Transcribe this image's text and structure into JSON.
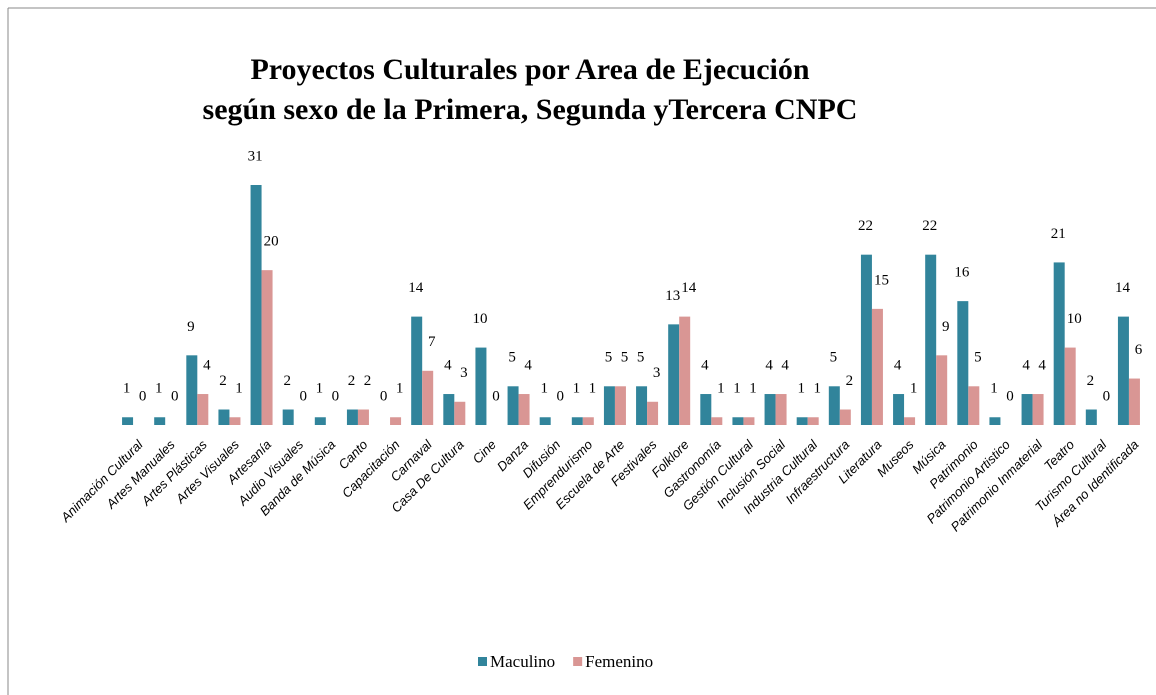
{
  "chart_data": {
    "type": "bar",
    "title": "Proyectos Culturales por Area de Ejecución",
    "subtitle": "según sexo de la Primera, Segunda yTercera CNPC",
    "categories": [
      "Animación Cultural",
      "Artes Manuales",
      "Artes Plásticas",
      "Artes Visuales",
      "Artesanía",
      "Audio Visuales",
      "Banda de Música",
      "Canto",
      "Capacitación",
      "Carnaval",
      "Casa De Cultura",
      "Cine",
      "Danza",
      "Difusión",
      "Emprendurismo",
      "Escuela de Arte",
      "Festivales",
      "Folklore",
      "Gastronomía",
      "Gestión Cultural",
      "Inclusión Social",
      "Industria Cultural",
      "Infraestructura",
      "Literatura",
      "Museos",
      "Música",
      "Patrimonio",
      "Patrimonio Artistico",
      "Patrimonio Inmaterial",
      "Teatro",
      "Turismo Cultural",
      "Área no Identificada"
    ],
    "series": [
      {
        "name": "Maculino",
        "color": "#31849b",
        "values": [
          1,
          1,
          9,
          2,
          31,
          2,
          1,
          2,
          0,
          14,
          4,
          10,
          5,
          1,
          1,
          5,
          5,
          13,
          4,
          1,
          4,
          1,
          5,
          22,
          4,
          22,
          16,
          1,
          4,
          21,
          2,
          14
        ]
      },
      {
        "name": "Femenino",
        "color": "#d99694",
        "values": [
          0,
          0,
          4,
          1,
          20,
          0,
          0,
          2,
          1,
          7,
          3,
          0,
          4,
          0,
          1,
          5,
          3,
          14,
          1,
          1,
          4,
          1,
          2,
          15,
          1,
          9,
          5,
          0,
          4,
          10,
          0,
          6
        ]
      }
    ],
    "legend": "bottom"
  }
}
